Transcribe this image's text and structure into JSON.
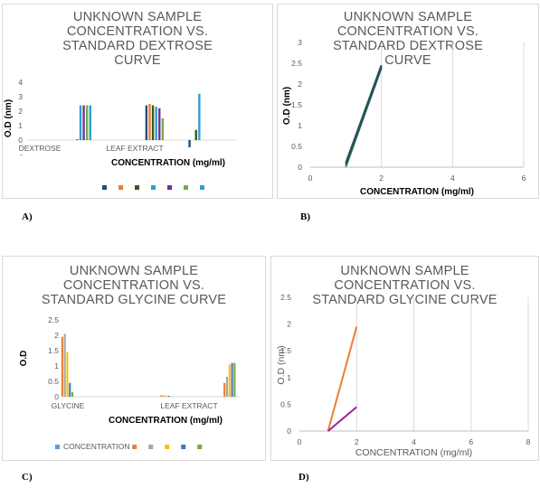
{
  "panel_labels": [
    "A)",
    "B)",
    "C)",
    "D)"
  ],
  "chart_data": [
    {
      "id": "A",
      "type": "bar",
      "title": "UNKNOWN SAMPLE\nCONCENTRATION VS.\nSTANDARD DEXTROSE\nCURVE",
      "xlabel": "CONCENTRATION (mg/ml)",
      "ylabel": "O.D (nm)",
      "ylim": [
        -1,
        4
      ],
      "yticks": [
        "4",
        "3",
        "2",
        "1",
        "0",
        "-"
      ],
      "categories": [
        "DEXTROSE",
        "LEAF EXTRACT",
        ""
      ],
      "series": [
        {
          "color": "#1f4e79",
          "values": [
            0,
            2.4,
            -0.5
          ]
        },
        {
          "color": "#ed7d31",
          "values": [
            0,
            2.5,
            0
          ]
        },
        {
          "color": "#375623",
          "values": [
            0.05,
            2.4,
            0.7
          ]
        },
        {
          "color": "#2e9fd0",
          "values": [
            2.4,
            2.3,
            3.2
          ]
        },
        {
          "color": "#7030a0",
          "values": [
            2.4,
            2.2,
            0
          ]
        },
        {
          "color": "#70ad47",
          "values": [
            2.4,
            1.5,
            0
          ]
        },
        {
          "color": "#2e9fd0",
          "values": [
            2.4,
            0,
            0
          ]
        }
      ],
      "legend": {
        "position": "bottom"
      },
      "grid": false
    },
    {
      "id": "B",
      "type": "line",
      "title": "UNKNOWN SAMPLE\nCONCENTRATION VS.\nSTANDARD DEXTROSE\nCURVE",
      "xlabel": "CONCENTRATION (mg/ml)",
      "ylabel": "O.D (nm)",
      "xlim": [
        0,
        6
      ],
      "ylim": [
        0,
        3
      ],
      "xticks": [
        "0",
        "2",
        "4",
        "6"
      ],
      "yticks": [
        "0",
        "0.5",
        "1",
        "1.5",
        "2",
        "2.5",
        "3"
      ],
      "series": [
        {
          "color": "#70ad47",
          "x": [
            1,
            2
          ],
          "y": [
            0,
            2.4
          ]
        },
        {
          "color": "#375623",
          "x": [
            1,
            2
          ],
          "y": [
            0.1,
            2.45
          ]
        },
        {
          "color": "#1f4e79",
          "x": [
            1,
            2
          ],
          "y": [
            0.05,
            2.4
          ]
        }
      ],
      "grid": true
    },
    {
      "id": "C",
      "type": "bar",
      "title": "UNKNOWN SAMPLE\nCONCENTRATION VS.\nSTANDARD GLYCINE CURVE",
      "xlabel": "CONCENTRATION (mg/ml)",
      "ylabel": "O.D",
      "ylim": [
        0,
        2.5
      ],
      "yticks": [
        "0",
        "0.5",
        "1",
        "1.5",
        "2",
        "2.5"
      ],
      "categories": [
        "GLYCINE",
        "LEAF EXTRACT",
        ""
      ],
      "series": [
        {
          "name": "CONCENTRATION",
          "color": "#5b9bd5",
          "values": [
            0,
            0,
            0
          ]
        },
        {
          "color": "#ed7d31",
          "values": [
            1.95,
            0.05,
            0.45
          ]
        },
        {
          "color": "#a5a5a5",
          "values": [
            2.05,
            0.04,
            0.65
          ]
        },
        {
          "color": "#ffc000",
          "values": [
            1.45,
            0.03,
            1.05
          ]
        },
        {
          "color": "#4472c4",
          "values": [
            0.45,
            0.03,
            1.1
          ]
        },
        {
          "color": "#70ad47",
          "values": [
            0.15,
            0,
            1.1
          ]
        }
      ],
      "legend": {
        "position": "bottom"
      },
      "grid": false
    },
    {
      "id": "D",
      "type": "line",
      "title": "UNKNOWN SAMPLE\nCONCENTRATION VS.\nSTANDARD GLYCINE CURVE",
      "xlabel": "CONCENTRATION (mg/ml)",
      "ylabel": "O.D (nm)",
      "xlim": [
        0,
        8
      ],
      "ylim": [
        0,
        2.5
      ],
      "xticks": [
        "0",
        "2",
        "4",
        "6",
        "8"
      ],
      "yticks": [
        "0",
        "0.5",
        "1",
        "1.5",
        "2",
        "2.5"
      ],
      "series": [
        {
          "color": "#ed7d31",
          "x": [
            1,
            2
          ],
          "y": [
            0,
            1.95
          ]
        },
        {
          "color": "#a020a0",
          "x": [
            1,
            2
          ],
          "y": [
            0,
            0.45
          ]
        }
      ],
      "grid": true
    }
  ]
}
